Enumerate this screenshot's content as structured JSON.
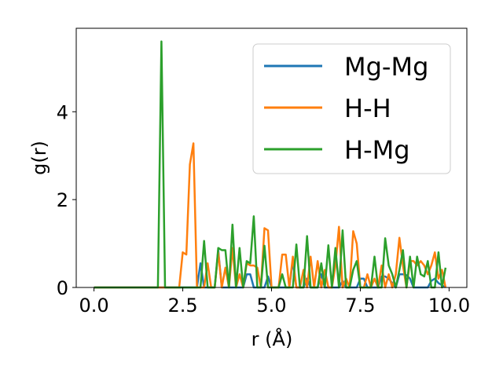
{
  "chart_data": {
    "type": "line",
    "title": "",
    "xlabel": "r (Å)",
    "ylabel": "g(r)",
    "xlim": [
      -0.5,
      10.5
    ],
    "ylim": [
      0,
      5.9
    ],
    "xticks": [
      0.0,
      2.5,
      5.0,
      7.5,
      10.0
    ],
    "xtick_labels": [
      "0.0",
      "2.5",
      "5.0",
      "7.5",
      "10.0"
    ],
    "yticks": [
      0,
      2,
      4
    ],
    "ytick_labels": [
      "0",
      "2",
      "4"
    ],
    "grid": false,
    "legend_position": "top-right",
    "series": [
      {
        "name": "Mg-Mg",
        "color": "#1f77b4",
        "x": [
          0.0,
          2.9,
          3.0,
          3.1,
          3.2,
          3.3,
          3.4,
          3.5,
          3.6,
          3.7,
          3.8,
          3.9,
          4.0,
          4.1,
          4.2,
          4.3,
          4.4,
          4.5,
          4.6,
          4.7,
          4.8,
          4.9,
          5.0,
          5.1,
          5.2,
          5.3,
          5.4,
          5.5,
          5.6,
          5.7,
          5.8,
          5.9,
          6.0,
          6.1,
          6.2,
          6.3,
          6.4,
          6.5,
          6.6,
          6.7,
          6.8,
          6.9,
          7.0,
          7.1,
          7.2,
          7.3,
          7.4,
          7.5,
          7.6,
          7.7,
          7.8,
          7.9,
          8.0,
          8.1,
          8.2,
          8.3,
          8.4,
          8.5,
          8.6,
          8.7,
          8.8,
          8.9,
          9.0,
          9.1,
          9.2,
          9.3,
          9.4,
          9.5,
          9.6,
          9.7,
          9.8,
          9.9
        ],
        "y": [
          0.0,
          0.0,
          0.55,
          0.0,
          0.0,
          0.0,
          0.0,
          0.85,
          0.0,
          0.0,
          0.0,
          0.0,
          0.0,
          0.0,
          0.0,
          0.3,
          0.3,
          0.0,
          0.0,
          0.0,
          0.0,
          0.25,
          0.0,
          0.0,
          0.0,
          0.0,
          0.0,
          0.0,
          0.6,
          0.0,
          0.0,
          0.0,
          0.2,
          0.0,
          0.0,
          0.0,
          0.3,
          0.0,
          0.0,
          0.0,
          0.0,
          0.0,
          0.15,
          0.0,
          0.0,
          0.0,
          0.0,
          0.2,
          0.2,
          0.0,
          0.0,
          0.0,
          0.0,
          0.25,
          0.25,
          0.2,
          0.1,
          0.0,
          0.3,
          0.3,
          0.28,
          0.2,
          0.0,
          0.0,
          0.0,
          0.0,
          0.0,
          0.15,
          0.2,
          0.1,
          0.05,
          0.0
        ]
      },
      {
        "name": "H-H",
        "color": "#ff7f0e",
        "x": [
          0.0,
          2.4,
          2.5,
          2.6,
          2.7,
          2.8,
          2.9,
          3.0,
          3.1,
          3.2,
          3.3,
          3.4,
          3.5,
          3.6,
          3.7,
          3.8,
          3.9,
          4.0,
          4.1,
          4.2,
          4.3,
          4.4,
          4.5,
          4.6,
          4.7,
          4.8,
          4.9,
          5.0,
          5.1,
          5.2,
          5.3,
          5.4,
          5.5,
          5.6,
          5.7,
          5.8,
          5.9,
          6.0,
          6.1,
          6.2,
          6.3,
          6.4,
          6.5,
          6.6,
          6.7,
          6.8,
          6.9,
          7.0,
          7.1,
          7.2,
          7.3,
          7.4,
          7.5,
          7.6,
          7.7,
          7.8,
          7.9,
          8.0,
          8.1,
          8.2,
          8.3,
          8.4,
          8.5,
          8.6,
          8.7,
          8.8,
          8.9,
          9.0,
          9.1,
          9.2,
          9.3,
          9.4,
          9.5,
          9.6,
          9.7,
          9.8,
          9.9
        ],
        "y": [
          0.0,
          0.0,
          0.8,
          0.75,
          2.8,
          3.28,
          0.0,
          0.0,
          0.0,
          0.55,
          0.0,
          0.0,
          0.8,
          0.0,
          0.45,
          0.0,
          0.9,
          0.0,
          0.3,
          0.0,
          0.55,
          0.5,
          0.5,
          0.45,
          0.0,
          1.35,
          1.3,
          0.0,
          0.0,
          0.0,
          0.75,
          0.75,
          0.0,
          0.7,
          0.0,
          0.0,
          0.4,
          0.0,
          0.7,
          0.0,
          0.6,
          0.0,
          0.4,
          0.0,
          0.0,
          0.5,
          1.38,
          0.0,
          0.2,
          0.0,
          1.28,
          1.0,
          0.0,
          0.0,
          0.3,
          0.0,
          0.2,
          0.0,
          0.5,
          0.0,
          0.3,
          0.0,
          0.3,
          1.13,
          0.5,
          0.0,
          0.6,
          0.6,
          0.5,
          0.6,
          0.5,
          0.3,
          0.5,
          0.8,
          0.2,
          0.4,
          0.0
        ]
      },
      {
        "name": "H-Mg",
        "color": "#2ca02c",
        "x": [
          0.0,
          1.8,
          1.9,
          2.0,
          2.1,
          2.2,
          2.9,
          3.0,
          3.1,
          3.2,
          3.3,
          3.4,
          3.5,
          3.6,
          3.7,
          3.8,
          3.9,
          4.0,
          4.1,
          4.2,
          4.3,
          4.4,
          4.5,
          4.6,
          4.7,
          4.8,
          4.9,
          5.0,
          5.1,
          5.2,
          5.3,
          5.4,
          5.5,
          5.6,
          5.7,
          5.8,
          5.9,
          6.0,
          6.1,
          6.2,
          6.3,
          6.4,
          6.5,
          6.6,
          6.7,
          6.8,
          6.9,
          7.0,
          7.1,
          7.2,
          7.3,
          7.4,
          7.5,
          7.6,
          7.7,
          7.8,
          7.9,
          8.0,
          8.1,
          8.2,
          8.3,
          8.4,
          8.5,
          8.6,
          8.7,
          8.8,
          8.9,
          9.0,
          9.1,
          9.2,
          9.3,
          9.4,
          9.5,
          9.6,
          9.7,
          9.8,
          9.9
        ],
        "y": [
          0.0,
          0.0,
          5.6,
          0.0,
          0.0,
          0.0,
          0.0,
          0.0,
          1.06,
          0.0,
          0.0,
          0.0,
          0.9,
          0.85,
          0.85,
          0.0,
          1.43,
          0.0,
          0.9,
          0.0,
          0.6,
          0.55,
          1.62,
          0.0,
          0.0,
          0.95,
          0.0,
          0.0,
          0.0,
          0.0,
          0.3,
          0.0,
          0.0,
          0.0,
          0.98,
          0.0,
          0.0,
          1.17,
          0.0,
          0.0,
          0.0,
          0.55,
          0.0,
          0.96,
          0.0,
          0.9,
          0.0,
          1.3,
          0.0,
          0.0,
          0.4,
          0.6,
          0.0,
          0.0,
          0.0,
          0.0,
          0.7,
          0.0,
          0.0,
          1.12,
          0.5,
          0.3,
          0.0,
          0.4,
          0.85,
          0.0,
          0.7,
          0.0,
          0.7,
          0.3,
          0.25,
          0.6,
          0.0,
          0.0,
          0.8,
          0.0,
          0.45
        ]
      }
    ]
  }
}
